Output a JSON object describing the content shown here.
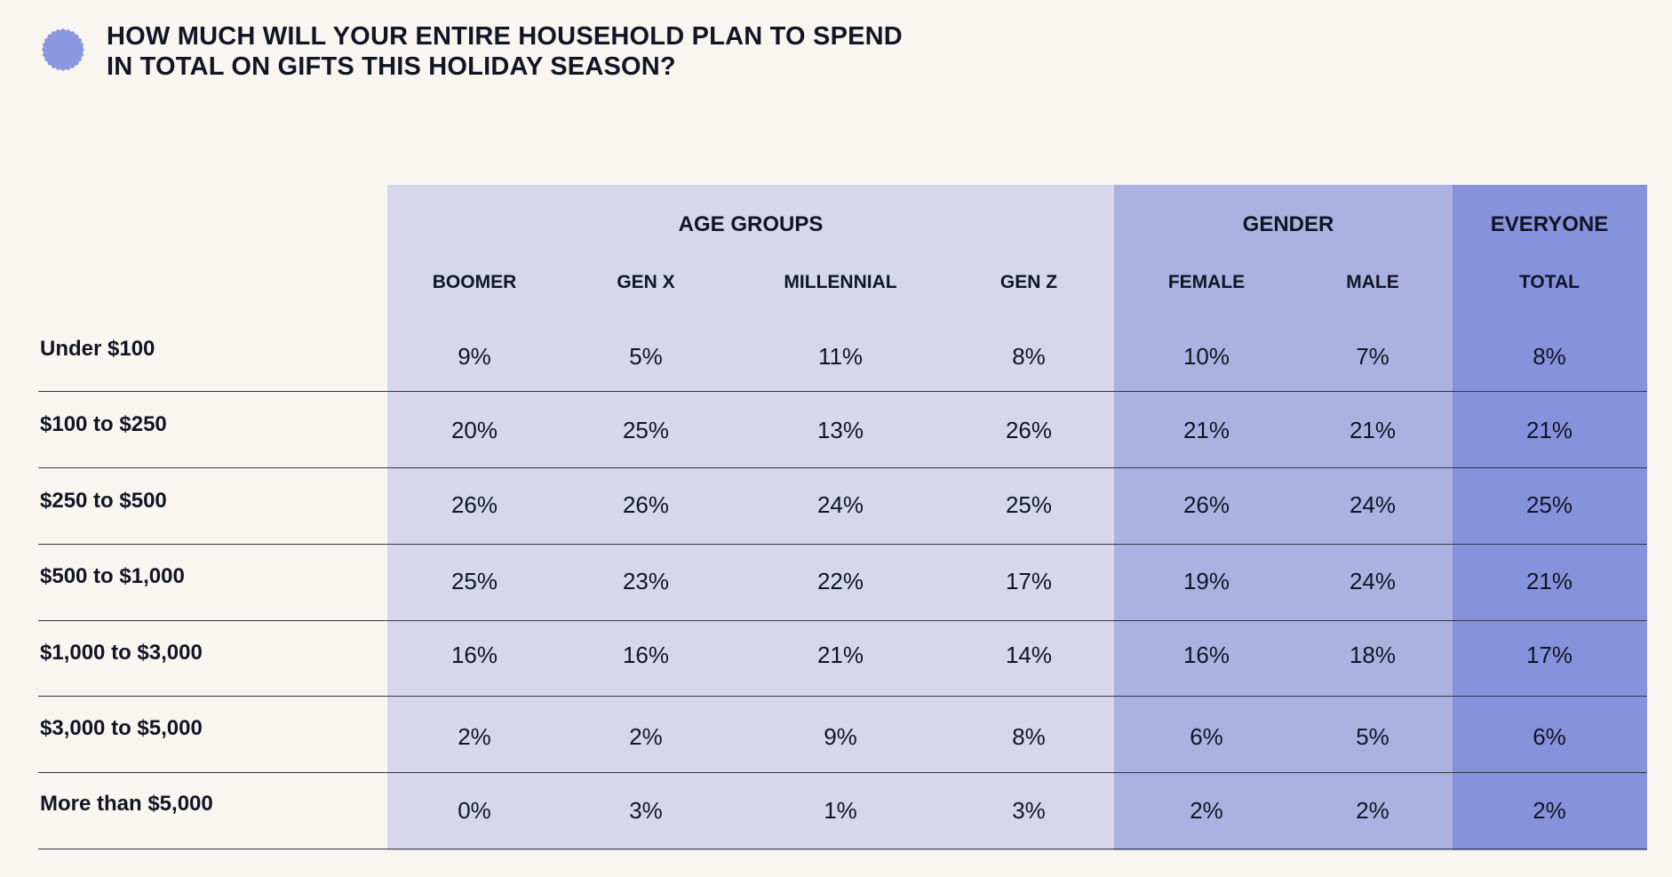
{
  "header": {
    "title_line1": "HOW MUCH WILL YOUR ENTIRE HOUSEHOLD PLAN TO SPEND",
    "title_line2": "IN TOTAL ON GIFTS THIS HOLIDAY SEASON?",
    "badge_icon": "scalloped-circle-icon",
    "badge_color": "#8b98df"
  },
  "colors": {
    "background": "#f9f5f1",
    "age_band": "#d6d7eb",
    "gender_band": "#abb2e1",
    "everyone_band": "#8792dc",
    "text": "#121524"
  },
  "chart_data": {
    "type": "table",
    "title": "HOW MUCH WILL YOUR ENTIRE HOUSEHOLD PLAN TO SPEND IN TOTAL ON GIFTS THIS HOLIDAY SEASON?",
    "groups": [
      {
        "name": "AGE GROUPS",
        "columns": [
          "BOOMER",
          "GEN X",
          "MILLENNIAL",
          "GEN Z"
        ]
      },
      {
        "name": "GENDER",
        "columns": [
          "FEMALE",
          "MALE"
        ]
      },
      {
        "name": "EVERYONE",
        "columns": [
          "TOTAL"
        ]
      }
    ],
    "columns": [
      "BOOMER",
      "GEN X",
      "MILLENNIAL",
      "GEN Z",
      "FEMALE",
      "MALE",
      "TOTAL"
    ],
    "rows": [
      {
        "label": "Under $100",
        "values": [
          "9%",
          "5%",
          "11%",
          "8%",
          "10%",
          "7%",
          "8%"
        ]
      },
      {
        "label": "$100 to $250",
        "values": [
          "20%",
          "25%",
          "13%",
          "26%",
          "21%",
          "21%",
          "21%"
        ]
      },
      {
        "label": "$250 to $500",
        "values": [
          "26%",
          "26%",
          "24%",
          "25%",
          "26%",
          "24%",
          "25%"
        ]
      },
      {
        "label": "$500 to $1,000",
        "values": [
          "25%",
          "23%",
          "22%",
          "17%",
          "19%",
          "24%",
          "21%"
        ]
      },
      {
        "label": "$1,000 to $3,000",
        "values": [
          "16%",
          "16%",
          "21%",
          "14%",
          "16%",
          "18%",
          "17%"
        ]
      },
      {
        "label": "$3,000 to $5,000",
        "values": [
          "2%",
          "2%",
          "9%",
          "8%",
          "6%",
          "5%",
          "6%"
        ]
      },
      {
        "label": "More than $5,000",
        "values": [
          "0%",
          "3%",
          "1%",
          "3%",
          "2%",
          "2%",
          "2%"
        ]
      }
    ]
  }
}
